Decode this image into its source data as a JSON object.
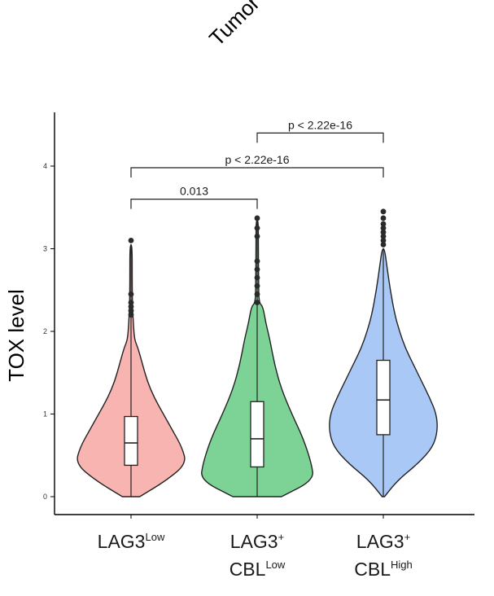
{
  "chart_data": {
    "type": "violin",
    "partial_title": "Tumor",
    "ylabel": "TOX level",
    "ylim": [
      0,
      4.4
    ],
    "yticks": [
      0,
      1,
      2,
      3,
      4
    ],
    "categories": [
      {
        "line1": "LAG3",
        "sup1": "Low",
        "line2": "",
        "sup2": ""
      },
      {
        "line1": "LAG3",
        "sup1": "+",
        "line2": "CBL",
        "sup2": "Low"
      },
      {
        "line1": "LAG3",
        "sup1": "+",
        "line2": "CBL",
        "sup2": "High"
      }
    ],
    "series": [
      {
        "name": "LAG3 Low",
        "color": "#f8b4b0",
        "box": {
          "whisker_low": 0.0,
          "q1": 0.38,
          "median": 0.65,
          "q3": 0.97,
          "whisker_high": 3.05
        },
        "outliers": [
          2.2,
          2.25,
          2.3,
          2.35,
          2.45,
          3.1
        ],
        "density": [
          [
            0,
            0.15
          ],
          [
            0.2,
            0.62
          ],
          [
            0.4,
            0.96
          ],
          [
            0.6,
            0.88
          ],
          [
            0.8,
            0.72
          ],
          [
            1.0,
            0.56
          ],
          [
            1.2,
            0.4
          ],
          [
            1.4,
            0.28
          ],
          [
            1.6,
            0.2
          ],
          [
            1.8,
            0.12
          ],
          [
            1.9,
            0.06
          ],
          [
            2.1,
            0.04
          ],
          [
            2.3,
            0.025
          ],
          [
            2.6,
            0.02
          ],
          [
            3.05,
            0.02
          ]
        ]
      },
      {
        "name": "LAG3+ CBL Low",
        "color": "#7dd295",
        "box": {
          "whisker_low": 0.0,
          "q1": 0.36,
          "median": 0.7,
          "q3": 1.15,
          "whisker_high": 3.35
        },
        "outliers": [
          2.35,
          2.45,
          2.55,
          2.65,
          2.75,
          2.85,
          3.15,
          3.25,
          3.37
        ],
        "density": [
          [
            0,
            0.42
          ],
          [
            0.2,
            0.98
          ],
          [
            0.4,
            0.94
          ],
          [
            0.7,
            0.8
          ],
          [
            1.0,
            0.6
          ],
          [
            1.3,
            0.42
          ],
          [
            1.6,
            0.3
          ],
          [
            1.9,
            0.22
          ],
          [
            2.1,
            0.15
          ],
          [
            2.3,
            0.1
          ],
          [
            2.35,
            0.03
          ],
          [
            2.6,
            0.025
          ],
          [
            3.0,
            0.02
          ],
          [
            3.35,
            0.02
          ]
        ]
      },
      {
        "name": "LAG3+ CBL High",
        "color": "#a9c8f5",
        "box": {
          "whisker_low": 0.0,
          "q1": 0.75,
          "median": 1.17,
          "q3": 1.65,
          "whisker_high": 3.0
        },
        "outliers": [
          3.05,
          3.1,
          3.15,
          3.2,
          3.25,
          3.3,
          3.37,
          3.45
        ],
        "density": [
          [
            0,
            0.02
          ],
          [
            0.2,
            0.25
          ],
          [
            0.4,
            0.6
          ],
          [
            0.6,
            0.86
          ],
          [
            0.8,
            0.94
          ],
          [
            1.0,
            0.92
          ],
          [
            1.2,
            0.8
          ],
          [
            1.4,
            0.66
          ],
          [
            1.6,
            0.52
          ],
          [
            1.8,
            0.38
          ],
          [
            2.0,
            0.28
          ],
          [
            2.2,
            0.2
          ],
          [
            2.5,
            0.12
          ],
          [
            2.8,
            0.06
          ],
          [
            3.0,
            0.02
          ]
        ]
      }
    ],
    "comparisons": [
      {
        "label": "0.013",
        "from": 0,
        "to": 1,
        "y": 3.6
      },
      {
        "label": "p < 2.22e-16",
        "from": 0,
        "to": 2,
        "y": 3.98
      },
      {
        "label": "p < 2.22e-16",
        "from": 1,
        "to": 2,
        "y": 4.4
      }
    ]
  }
}
